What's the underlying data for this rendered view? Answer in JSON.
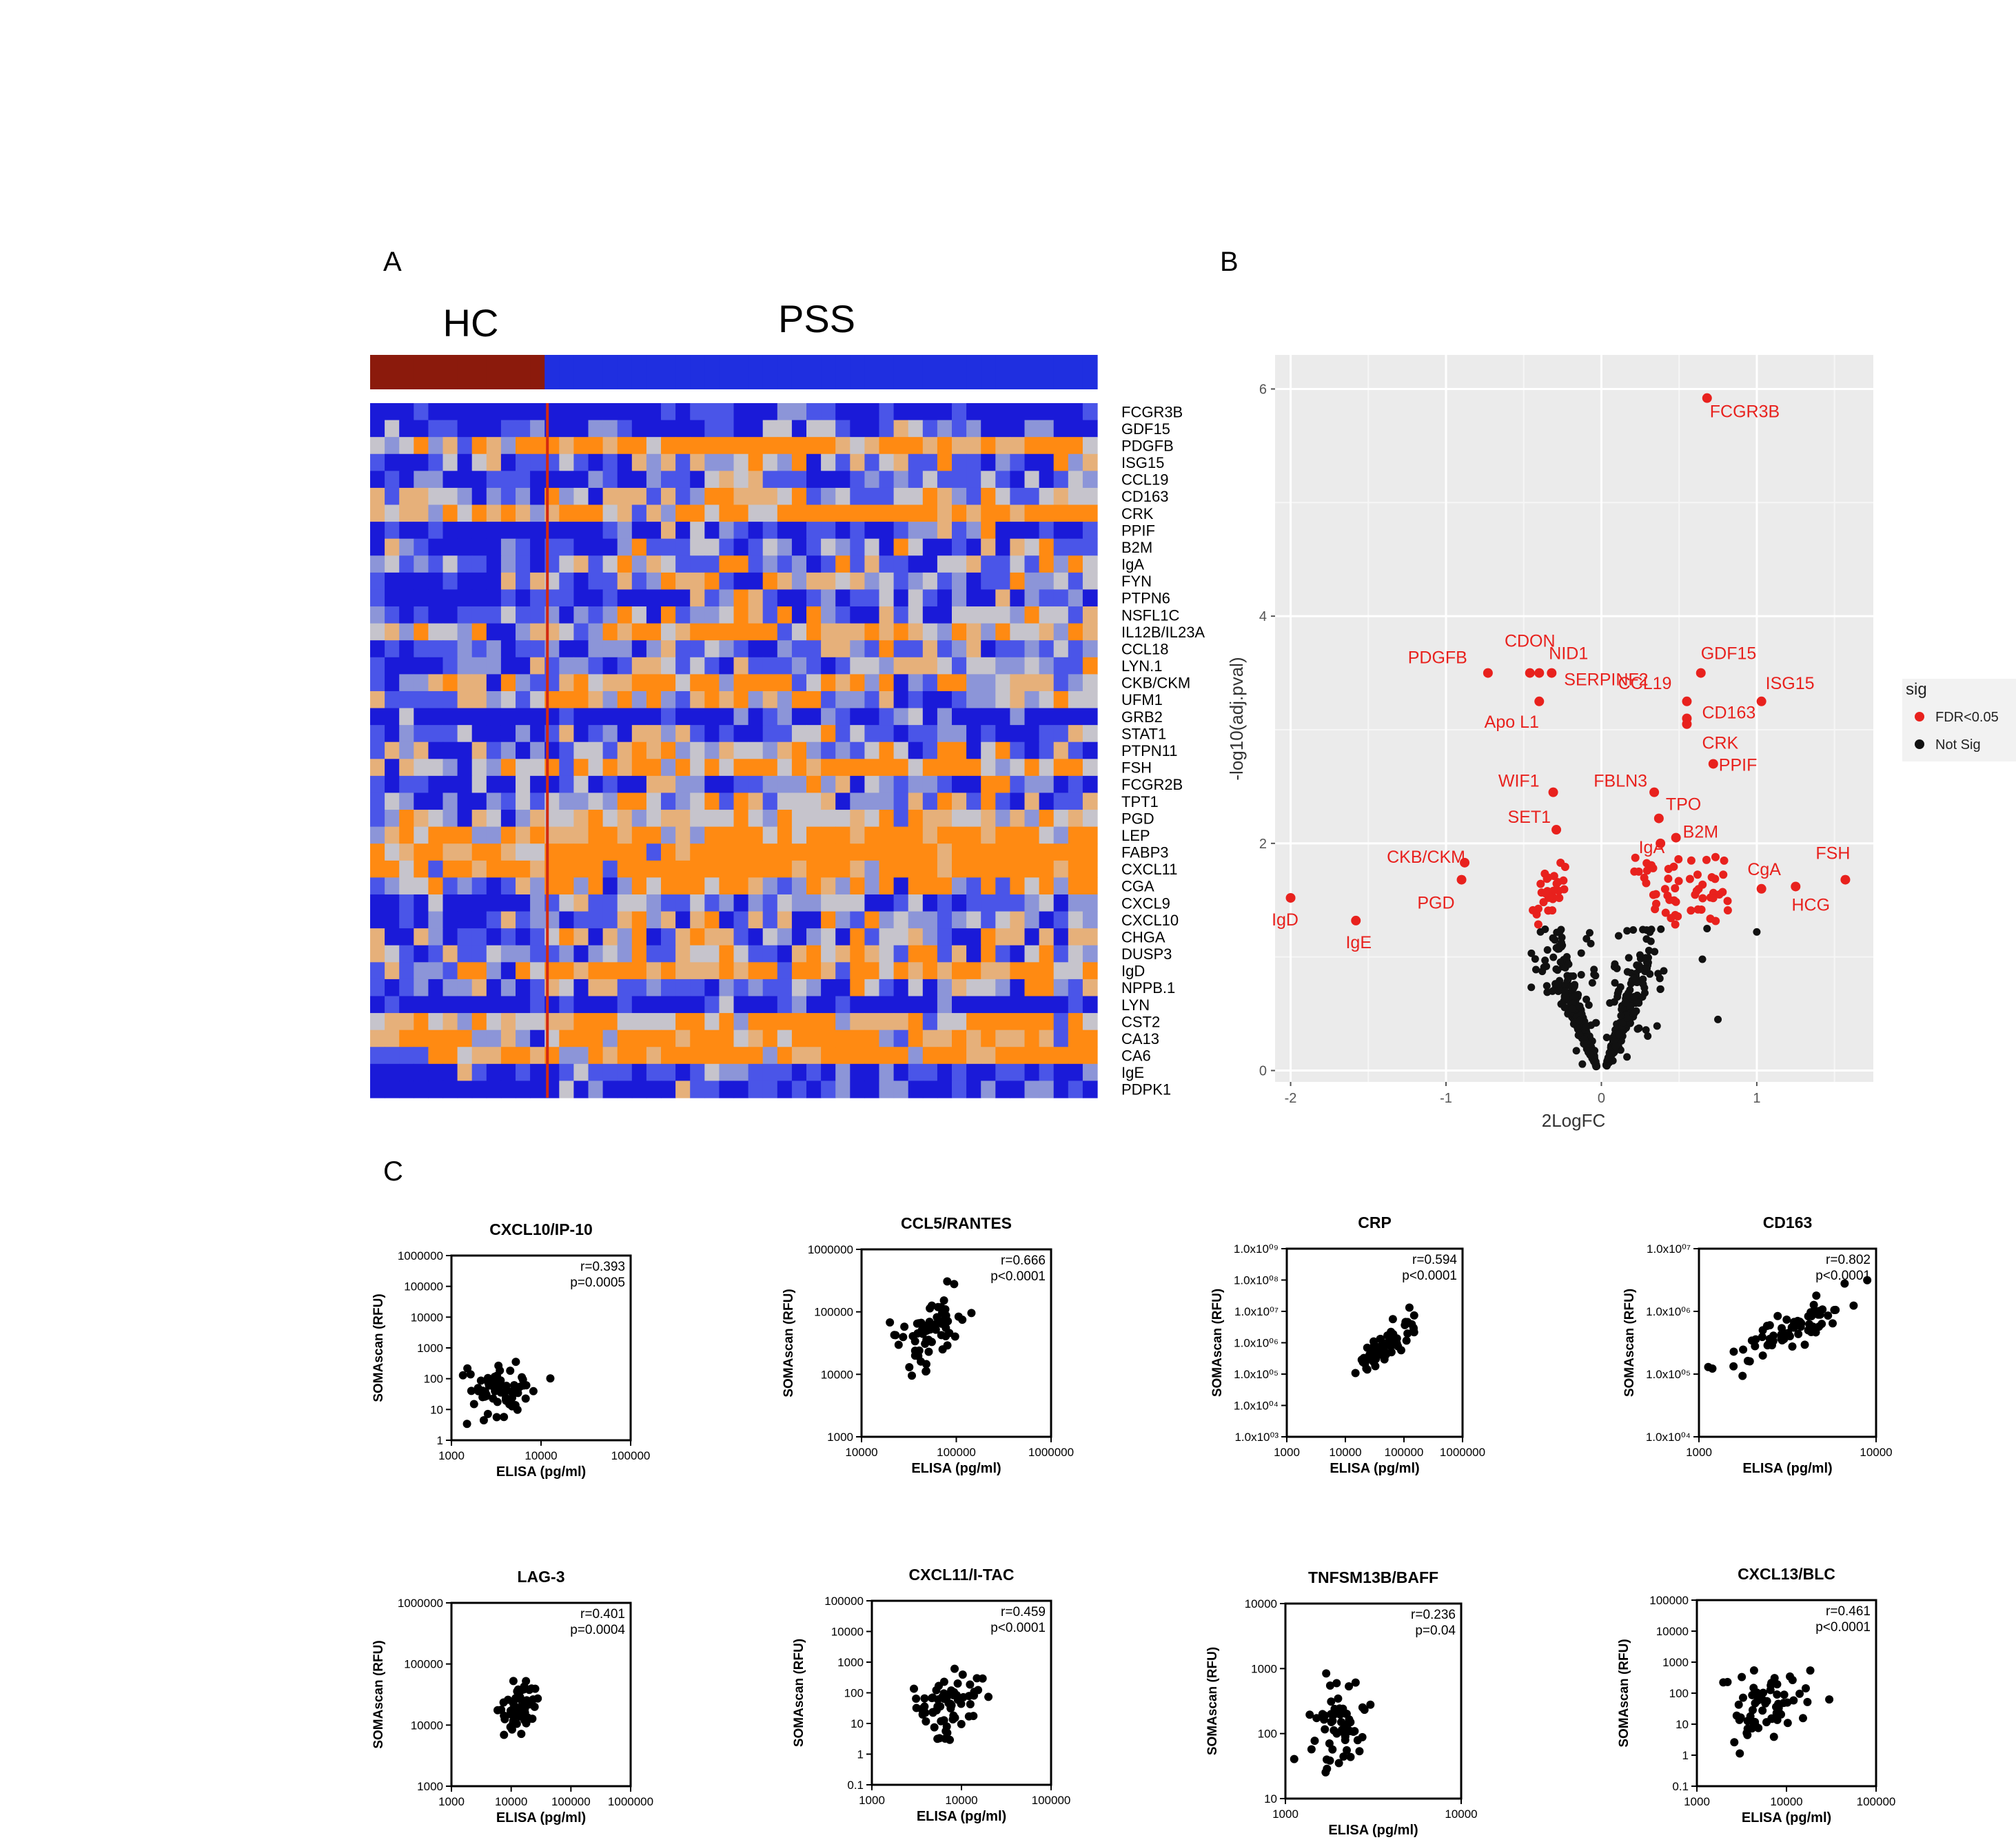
{
  "panels": {
    "a_label": "A",
    "b_label": "B",
    "c_label": "C"
  },
  "heatmap": {
    "group_labels": [
      "HC",
      "PSS"
    ],
    "hc_columns": 12,
    "pss_columns": 38,
    "colors": {
      "hc": "#8b1a0c",
      "pss": "#1f2fe0",
      "low": "#1e1ee0",
      "mid": "#c8c8d2",
      "high": "#ff8a10",
      "divider": "#d42a10"
    },
    "genes": [
      "FCGR3B",
      "GDF15",
      "PDGFB",
      "ISG15",
      "CCL19",
      "CD163",
      "CRK",
      "PPIF",
      "B2M",
      "IgA",
      "FYN",
      "PTPN6",
      "NSFL1C",
      "IL12B/IL23A",
      "CCL18",
      "LYN.1",
      "CKB/CKM",
      "UFM1",
      "GRB2",
      "STAT1",
      "PTPN11",
      "FSH",
      "FCGR2B",
      "TPT1",
      "PGD",
      "LEP",
      "FABP3",
      "CXCL11",
      "CGA",
      "CXCL9",
      "CXCL10",
      "CHGA",
      "DUSP3",
      "IgD",
      "NPPB.1",
      "LYN",
      "CST2",
      "CA13",
      "CA6",
      "IgE",
      "PDPK1"
    ],
    "row_bias": [
      -0.9,
      -0.6,
      0.6,
      -0.3,
      -0.5,
      0.0,
      0.6,
      -0.7,
      -0.4,
      -0.1,
      -0.2,
      -0.6,
      -0.3,
      0.3,
      -0.3,
      -0.4,
      0.2,
      0.0,
      -0.8,
      -0.3,
      -0.1,
      0.3,
      -0.4,
      -0.2,
      0.1,
      0.6,
      0.9,
      0.7,
      0.4,
      -0.5,
      -0.4,
      -0.2,
      -0.1,
      0.4,
      -0.3,
      -1.0,
      0.5,
      0.5,
      0.6,
      -0.6,
      -0.9
    ]
  },
  "volcano": {
    "title": "",
    "xlabel": "2LogFC",
    "ylabel": "-log10(adj.pval)",
    "xlim": [
      -2.1,
      1.75
    ],
    "ylim": [
      -0.1,
      6.3
    ],
    "xticks": [
      -2,
      -1,
      0,
      1
    ],
    "yticks": [
      0,
      2,
      4,
      6
    ],
    "legend_title": "sig",
    "legend_items": [
      {
        "label": "FDR<0.05",
        "color": "#e8211d"
      },
      {
        "label": "Not Sig",
        "color": "#111111"
      }
    ],
    "background": "#ebebeb",
    "labeled_points": [
      {
        "name": "FCGR3B",
        "x": 0.68,
        "y": 5.92
      },
      {
        "name": "GDF15",
        "x": 0.64,
        "y": 3.5
      },
      {
        "name": "ISG15",
        "x": 1.03,
        "y": 3.25
      },
      {
        "name": "CCL19",
        "x": 0.55,
        "y": 3.25
      },
      {
        "name": "CD163",
        "x": 0.55,
        "y": 3.1
      },
      {
        "name": "CRK",
        "x": 0.55,
        "y": 3.05
      },
      {
        "name": "PPIF",
        "x": 0.72,
        "y": 2.7
      },
      {
        "name": "PDGFB",
        "x": -0.73,
        "y": 3.5
      },
      {
        "name": "CDON",
        "x": -0.46,
        "y": 3.5
      },
      {
        "name": "NID1",
        "x": -0.4,
        "y": 3.5
      },
      {
        "name": "SERPINF2",
        "x": -0.32,
        "y": 3.5
      },
      {
        "name": "Apo L1",
        "x": -0.4,
        "y": 3.25
      },
      {
        "name": "WIF1",
        "x": -0.31,
        "y": 2.45
      },
      {
        "name": "FBLN3",
        "x": 0.34,
        "y": 2.45
      },
      {
        "name": "TPO",
        "x": 0.37,
        "y": 2.22
      },
      {
        "name": "SET1",
        "x": -0.29,
        "y": 2.12
      },
      {
        "name": "IgA",
        "x": 0.38,
        "y": 2.0
      },
      {
        "name": "B2M",
        "x": 0.48,
        "y": 2.05
      },
      {
        "name": "CKB/CKM",
        "x": -0.88,
        "y": 1.83
      },
      {
        "name": "PGD",
        "x": -0.9,
        "y": 1.68
      },
      {
        "name": "CgA",
        "x": 1.03,
        "y": 1.6
      },
      {
        "name": "FSH",
        "x": 1.57,
        "y": 1.68
      },
      {
        "name": "HCG",
        "x": 1.25,
        "y": 1.62
      },
      {
        "name": "IgD",
        "x": -2.0,
        "y": 1.52
      },
      {
        "name": "IgE",
        "x": -1.58,
        "y": 1.32
      }
    ]
  },
  "scatter_common": {
    "xlabel": "ELISA (pg/ml)",
    "ylabel": "SOMAscan (RFU)"
  },
  "chart_data": [
    {
      "type": "heatmap",
      "title": "",
      "rows": "genes (see heatmap.genes)",
      "groups": [
        "HC",
        "PSS"
      ],
      "columns": {
        "HC": 12,
        "PSS": 38
      }
    },
    {
      "type": "scatter",
      "title": "",
      "xlabel": "2LogFC",
      "ylabel": "-log10(adj.pval)",
      "xlim": [
        -2.1,
        1.75
      ],
      "ylim": [
        -0.1,
        6.3
      ],
      "series": [
        {
          "name": "FDR<0.05"
        },
        {
          "name": "Not Sig"
        }
      ]
    },
    {
      "type": "scatter",
      "title": "CXCL10/IP-10",
      "xlabel": "ELISA (pg/ml)",
      "ylabel": "SOMAscan (RFU)",
      "xlog": [
        3,
        5
      ],
      "ylog": [
        0,
        6
      ],
      "r": "r=0.393",
      "p": "p=0.0005",
      "center": [
        3.55,
        1.6
      ],
      "spread": [
        0.22,
        0.6
      ],
      "slope": 0.45,
      "n": 65
    },
    {
      "type": "scatter",
      "title": "CCL5/RANTES",
      "xlabel": "ELISA (pg/ml)",
      "ylabel": "SOMAscan (RFU)",
      "xlog": [
        4,
        6
      ],
      "ylog": [
        3,
        6
      ],
      "r": "r=0.666",
      "p": "p<0.0001",
      "center": [
        4.7,
        4.65
      ],
      "spread": [
        0.2,
        0.22
      ],
      "slope": 0.9,
      "n": 65
    },
    {
      "type": "scatter",
      "title": "CRP",
      "xlabel": "ELISA (pg/ml)",
      "ylabel": "SOMAscan (RFU)",
      "xlog": [
        3,
        6
      ],
      "ylog": [
        3,
        9
      ],
      "r": "r=0.594",
      "p": "p<0.0001",
      "center": [
        4.7,
        5.9
      ],
      "spread": [
        0.25,
        0.3
      ],
      "slope": 1.1,
      "n": 65
    },
    {
      "type": "scatter",
      "title": "CD163",
      "xlabel": "ELISA (pg/ml)",
      "ylabel": "SOMAscan (RFU)",
      "xlog": [
        3,
        4
      ],
      "ylog": [
        4,
        7
      ],
      "r": "r=0.802",
      "p": "p<0.0001",
      "center": [
        3.5,
        5.65
      ],
      "spread": [
        0.16,
        0.14
      ],
      "slope": 1.2,
      "n": 70
    },
    {
      "type": "scatter",
      "title": "LAG-3",
      "xlabel": "ELISA (pg/ml)",
      "ylabel": "SOMAscan (RFU)",
      "xlog": [
        3,
        6
      ],
      "ylog": [
        3,
        6
      ],
      "r": "r=0.401",
      "p": "p=0.0004",
      "center": [
        4.15,
        4.35
      ],
      "spread": [
        0.15,
        0.18
      ],
      "slope": 0.7,
      "n": 65
    },
    {
      "type": "scatter",
      "title": "CXCL11/I-TAC",
      "xlabel": "ELISA (pg/ml)",
      "ylabel": "SOMAscan (RFU)",
      "xlog": [
        3,
        5
      ],
      "ylog": [
        -1,
        5
      ],
      "r": "r=0.459",
      "p": "p<0.0001",
      "center": [
        3.85,
        1.6
      ],
      "spread": [
        0.22,
        0.55
      ],
      "slope": 0.8,
      "n": 65
    },
    {
      "type": "scatter",
      "title": "TNFSM13B/BAFF",
      "xlabel": "ELISA (pg/ml)",
      "ylabel": "SOMAscan (RFU)",
      "xlog": [
        3,
        4
      ],
      "ylog": [
        1,
        4
      ],
      "r": "r=0.236",
      "p": "p=0.04",
      "center": [
        3.3,
        2.2
      ],
      "spread": [
        0.08,
        0.3
      ],
      "slope": 0.3,
      "n": 60
    },
    {
      "type": "scatter",
      "title": "CXCL13/BLC",
      "xlabel": "ELISA (pg/ml)",
      "ylabel": "SOMAscan (RFU)",
      "xlog": [
        3,
        5
      ],
      "ylog": [
        -1,
        5
      ],
      "r": "r=0.461",
      "p": "p<0.0001",
      "center": [
        3.75,
        1.6
      ],
      "spread": [
        0.22,
        0.55
      ],
      "slope": 0.7,
      "n": 65
    }
  ]
}
